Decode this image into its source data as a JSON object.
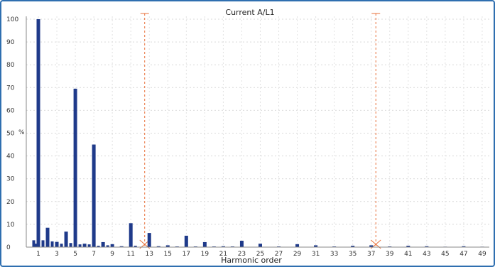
{
  "chart_data": {
    "type": "bar",
    "title": "Current A/L1",
    "xlabel": "Harmonic order",
    "ylabel": "%",
    "ylim": [
      0,
      100
    ],
    "y_ticks": [
      0,
      10,
      20,
      30,
      40,
      50,
      60,
      70,
      80,
      90,
      100
    ],
    "x_tick_labels": [
      "1",
      "3",
      "5",
      "7",
      "9",
      "11",
      "13",
      "15",
      "17",
      "19",
      "21",
      "23",
      "25",
      "27",
      "29",
      "31",
      "33",
      "35",
      "37",
      "39",
      "41",
      "43",
      "45",
      "47",
      "49"
    ],
    "grid": true,
    "bar_color": "#1f3a8a",
    "cursor_color": "#e8703a",
    "cursors": [
      12.5,
      37.5
    ],
    "bars": [
      {
        "h": 0.5,
        "v": 3
      },
      {
        "h": 0.75,
        "v": 1.5
      },
      {
        "h": 1,
        "v": 100
      },
      {
        "h": 1.5,
        "v": 3
      },
      {
        "h": 2,
        "v": 8.5
      },
      {
        "h": 2.5,
        "v": 2.5
      },
      {
        "h": 3,
        "v": 2.3
      },
      {
        "h": 3.5,
        "v": 1.5
      },
      {
        "h": 4,
        "v": 6.8
      },
      {
        "h": 4.5,
        "v": 1.8
      },
      {
        "h": 5,
        "v": 69.5
      },
      {
        "h": 5.5,
        "v": 1.2
      },
      {
        "h": 6,
        "v": 1.5
      },
      {
        "h": 6.5,
        "v": 1.2
      },
      {
        "h": 7,
        "v": 45
      },
      {
        "h": 7.5,
        "v": 0.6
      },
      {
        "h": 8,
        "v": 2.2
      },
      {
        "h": 8.5,
        "v": 0.8
      },
      {
        "h": 9,
        "v": 1.3
      },
      {
        "h": 10,
        "v": 0.4
      },
      {
        "h": 11,
        "v": 10.5
      },
      {
        "h": 11.5,
        "v": 0.6
      },
      {
        "h": 13,
        "v": 6.2
      },
      {
        "h": 14,
        "v": 0.4
      },
      {
        "h": 15,
        "v": 0.8
      },
      {
        "h": 16,
        "v": 0.3
      },
      {
        "h": 17,
        "v": 5
      },
      {
        "h": 18,
        "v": 0.3
      },
      {
        "h": 19,
        "v": 2.2
      },
      {
        "h": 20,
        "v": 0.3
      },
      {
        "h": 21,
        "v": 0.4
      },
      {
        "h": 22,
        "v": 0.3
      },
      {
        "h": 23,
        "v": 2.8
      },
      {
        "h": 25,
        "v": 1.5
      },
      {
        "h": 27,
        "v": 0.3
      },
      {
        "h": 29,
        "v": 1.3
      },
      {
        "h": 31,
        "v": 0.8
      },
      {
        "h": 33,
        "v": 0.3
      },
      {
        "h": 35,
        "v": 0.6
      },
      {
        "h": 37,
        "v": 0.8
      },
      {
        "h": 39,
        "v": 0.3
      },
      {
        "h": 41,
        "v": 0.6
      },
      {
        "h": 43,
        "v": 0.4
      },
      {
        "h": 45,
        "v": 0.2
      },
      {
        "h": 47,
        "v": 0.4
      },
      {
        "h": 49,
        "v": 0.2
      }
    ]
  }
}
